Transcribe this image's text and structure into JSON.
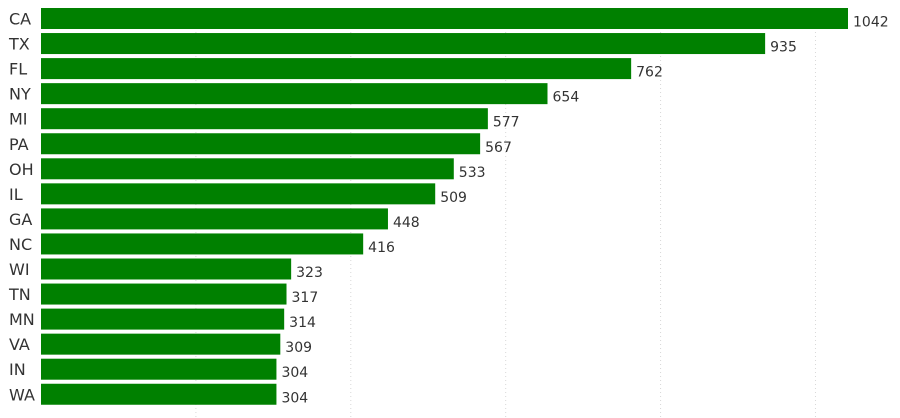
{
  "colors": {
    "bar": "#008000",
    "grid": "#d8d8d8",
    "text": "#333333"
  },
  "chart_data": {
    "type": "bar",
    "orientation": "horizontal",
    "title": "",
    "xlabel": "",
    "ylabel": "",
    "xlim": [
      0,
      1100
    ],
    "grid": true,
    "grid_ticks": [
      0,
      200,
      400,
      600,
      800,
      1000
    ],
    "legend": "none",
    "data_labels": true,
    "categories": [
      "CA",
      "TX",
      "FL",
      "NY",
      "MI",
      "PA",
      "OH",
      "IL",
      "GA",
      "NC",
      "WI",
      "TN",
      "MN",
      "VA",
      "IN",
      "WA"
    ],
    "values": [
      1042,
      935,
      762,
      654,
      577,
      567,
      533,
      509,
      448,
      416,
      323,
      317,
      314,
      309,
      304,
      304
    ]
  }
}
